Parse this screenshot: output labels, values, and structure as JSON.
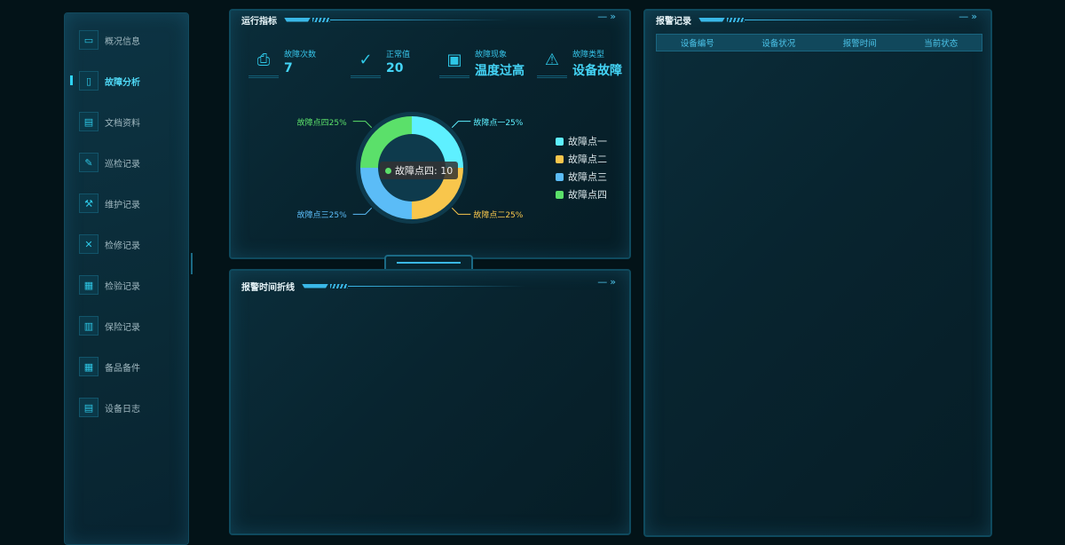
{
  "sidebar": {
    "items": [
      {
        "label": "概况信息",
        "icon": "chart-monitor-icon",
        "glyph": "▭"
      },
      {
        "label": "故障分析",
        "icon": "clipboard-icon",
        "glyph": "▯",
        "active": true
      },
      {
        "label": "文档资料",
        "icon": "printer-icon",
        "glyph": "▤"
      },
      {
        "label": "巡检记录",
        "icon": "edit-doc-icon",
        "glyph": "✎"
      },
      {
        "label": "维护记录",
        "icon": "tool-doc-icon",
        "glyph": "⚒"
      },
      {
        "label": "检修记录",
        "icon": "wrench-icon",
        "glyph": "✕"
      },
      {
        "label": "检验记录",
        "icon": "file-check-icon",
        "glyph": "▦"
      },
      {
        "label": "保险记录",
        "icon": "calculator-icon",
        "glyph": "▥"
      },
      {
        "label": "备品备件",
        "icon": "table-icon",
        "glyph": "▦"
      },
      {
        "label": "设备日志",
        "icon": "calendar-icon",
        "glyph": "▤"
      }
    ]
  },
  "panel_metrics": {
    "title": "运行指标",
    "kpis": [
      {
        "label": "故障次数",
        "value": "7",
        "icon": "fault-doc-icon",
        "glyph": "⎙"
      },
      {
        "label": "正常值",
        "value": "20",
        "icon": "check-circle-icon",
        "glyph": "✓"
      },
      {
        "label": "故障现象",
        "value": "温度过高",
        "icon": "monitor-alert-icon",
        "glyph": "▣"
      },
      {
        "label": "故障类型",
        "value": "设备故障",
        "icon": "warning-icon",
        "glyph": "⚠"
      }
    ]
  },
  "chart_data": {
    "type": "pie",
    "donut": true,
    "categories": [
      "故障点一",
      "故障点二",
      "故障点三",
      "故障点四"
    ],
    "values": [
      10,
      10,
      10,
      10
    ],
    "labels": [
      "故障点一25%",
      "故障点二25%",
      "故障点三25%",
      "故障点四25%"
    ],
    "colors": [
      "#5ef0ff",
      "#f8c64c",
      "#5bbcf7",
      "#5be06a"
    ],
    "legend_position": "right",
    "tooltip": {
      "label": "故障点四: 10"
    }
  },
  "panel_timeline": {
    "title": "报警时间折线"
  },
  "panel_alarms": {
    "title": "报警记录",
    "columns": [
      "设备编号",
      "设备状况",
      "报警时间",
      "当前状态"
    ]
  },
  "controls": {
    "minimize": "—",
    "expand": "»"
  }
}
